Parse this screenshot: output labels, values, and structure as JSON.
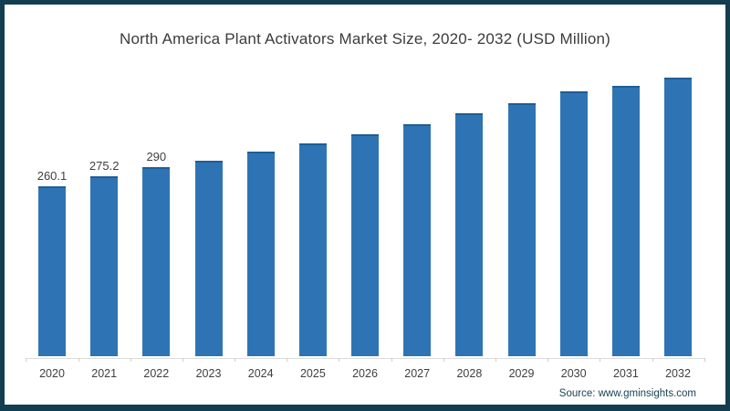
{
  "title": "North America Plant Activators Market Size, 2020- 2032 (USD Million)",
  "source_label": "Source: www.gminsights.com",
  "colors": {
    "frame_border": "#123e4f",
    "bar_fill": "#2e74b5",
    "bar_top_edge": "#205d93",
    "title_text": "#3b3b3b",
    "axis_text": "#3f3f3f",
    "axis_line": "#dcdcdc",
    "source_text": "#1a4357"
  },
  "chart_data": {
    "type": "bar",
    "title": "North America Plant Activators Market Size, 2020- 2032 (USD Million)",
    "categories": [
      "2020",
      "2021",
      "2022",
      "2023",
      "2024",
      "2025",
      "2026",
      "2027",
      "2028",
      "2029",
      "2030",
      "2031",
      "2032"
    ],
    "values": [
      260.1,
      275.2,
      290,
      299,
      313,
      326,
      340,
      356,
      372,
      388,
      406,
      414,
      427
    ],
    "data_labels": [
      "260.1",
      "275.2",
      "290",
      "",
      "",
      "",
      "",
      "",
      "",
      "",
      "",
      "",
      ""
    ],
    "xlabel": "",
    "ylabel": "",
    "ylim": [
      0,
      540
    ],
    "grid": false,
    "legend": "none",
    "bar_color": "#2e74b5",
    "note": "Only 2020-2022 bars carry visible value labels; remaining values estimated from bar heights"
  }
}
